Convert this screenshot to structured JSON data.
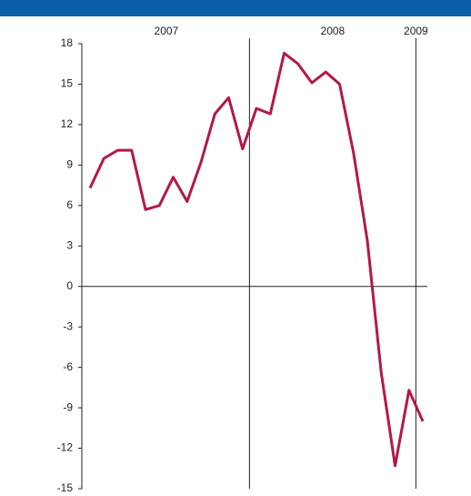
{
  "chart_data": {
    "type": "line",
    "categories": [
      null,
      null,
      null,
      null,
      null,
      null,
      null,
      null,
      null,
      null,
      null,
      null,
      null,
      null,
      null,
      null,
      null,
      null,
      null,
      null,
      null,
      null,
      null,
      null,
      null
    ],
    "year_labels": [
      "2007",
      "2008",
      "2009"
    ],
    "series": [
      {
        "color": "#b5174a",
        "values": [
          7.3,
          9.5,
          10.1,
          10.1,
          5.7,
          6.0,
          8.1,
          6.3,
          9.2,
          12.8,
          14.0,
          10.2,
          13.2,
          12.8,
          17.3,
          16.5,
          15.1,
          15.9,
          15.0,
          9.9,
          3.4,
          -6.4,
          -13.3,
          -7.7,
          -10.0
        ]
      }
    ],
    "ylim": [
      -15,
      18
    ],
    "yticks": [
      -15,
      -12,
      -9,
      -6,
      -3,
      0,
      3,
      6,
      9,
      12,
      15,
      18
    ]
  }
}
